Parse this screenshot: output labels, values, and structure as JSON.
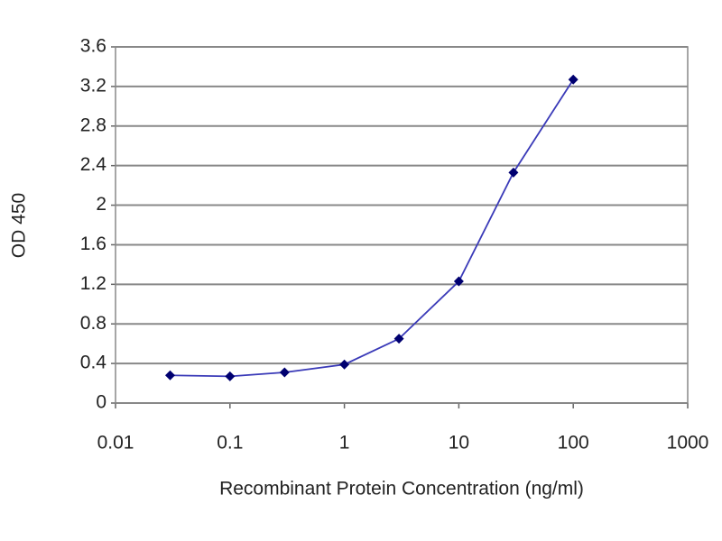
{
  "chart_data": {
    "type": "line",
    "x_label": "Recombinant Protein Concentration (ng/ml)",
    "y_label": "OD 450",
    "x": [
      0.03,
      0.1,
      0.3,
      1,
      3,
      10,
      30,
      100
    ],
    "series": [
      {
        "color": "#3a3ab8",
        "marker_color": "#000070",
        "values": [
          0.28,
          0.27,
          0.31,
          0.39,
          0.65,
          1.23,
          2.33,
          3.27
        ]
      }
    ],
    "xlim": [
      0.01,
      1000
    ],
    "xticks": [
      0.01,
      0.1,
      1,
      10,
      100,
      1000
    ],
    "x_log": true,
    "ylim": [
      0,
      3.6
    ],
    "yticks": [
      0,
      0.4,
      0.8,
      1.2,
      1.6,
      2,
      2.4,
      2.8,
      3.2,
      3.6
    ],
    "grid": true
  }
}
